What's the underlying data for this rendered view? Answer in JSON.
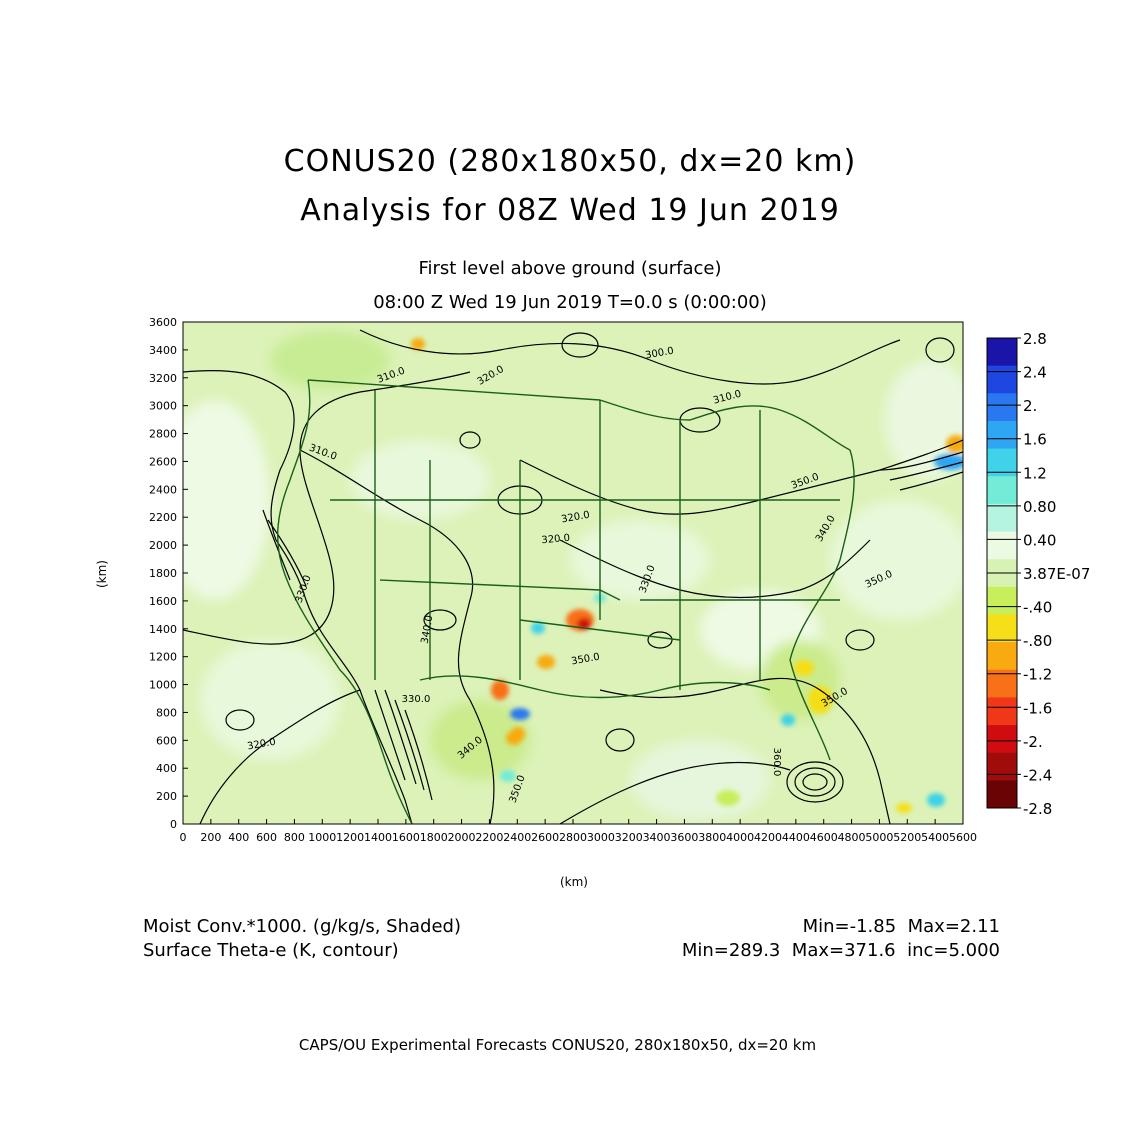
{
  "title": {
    "line1": "CONUS20 (280x180x50, dx=20 km)",
    "line2": "Analysis for 08Z Wed 19 Jun 2019"
  },
  "subtitle": {
    "level": "First level above ground (surface)",
    "time": "08:00 Z Wed 19 Jun 2019    T=0.0 s (0:00:00)"
  },
  "axes": {
    "x_label": "(km)",
    "y_label": "(km)",
    "x_ticks": [
      "0",
      "200",
      "400",
      "600",
      "800",
      "1000",
      "1200",
      "1400",
      "1600",
      "1800",
      "2000",
      "2200",
      "2400",
      "2600",
      "2800",
      "3000",
      "3200",
      "3400",
      "3600",
      "3800",
      "4000",
      "4200",
      "4400",
      "4600",
      "4800",
      "5000",
      "5200",
      "5400",
      "5600"
    ],
    "y_ticks": [
      "0",
      "200",
      "400",
      "600",
      "800",
      "1000",
      "1200",
      "1400",
      "1600",
      "1800",
      "2000",
      "2200",
      "2400",
      "2600",
      "2800",
      "3000",
      "3200",
      "3400",
      "3600"
    ],
    "x_range": [
      0,
      5600
    ],
    "y_range": [
      0,
      3600
    ]
  },
  "colorbar": {
    "labels": [
      "2.8",
      "2.4",
      "2.",
      "1.6",
      "1.2",
      "0.80",
      "0.40",
      "3.87E-07",
      "-.40",
      "-.80",
      "-1.2",
      "-1.6",
      "-2.",
      "-2.4",
      "-2.8"
    ],
    "colors": [
      "#1a14a8",
      "#1e46e0",
      "#2a78f0",
      "#2ea6f4",
      "#3fd2e8",
      "#72ecd6",
      "#b4f4e0",
      "#ecfae4",
      "#d8f2b4",
      "#c8ee5c",
      "#f6de18",
      "#f8aa10",
      "#f87018",
      "#f03818",
      "#d00c10",
      "#a00c0c",
      "#6a0404"
    ]
  },
  "contour_labels": [
    "300.0",
    "310.0",
    "320.0",
    "310.0",
    "310.0",
    "320.0",
    "320.0",
    "330.0",
    "340.0",
    "350.0",
    "350.0",
    "350.0",
    "330.0",
    "350.0",
    "360.0",
    "320.0",
    "340.0",
    "350.0",
    "330.0",
    "340.0"
  ],
  "fields": {
    "shaded_name": "Moist Conv.*1000. (g/kg/s, Shaded)",
    "contour_name": "Surface Theta-e (K, contour)",
    "shaded_stats": "Min=-1.85  Max=2.11",
    "contour_stats": "Min=289.3  Max=371.6  inc=5.000"
  },
  "footer": "CAPS/OU Experimental Forecasts   CONUS20, 280x180x50, dx=20 km"
}
